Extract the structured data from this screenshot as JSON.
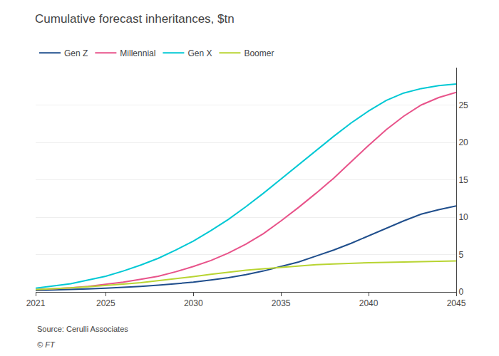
{
  "chart_data": {
    "type": "line",
    "title": "Cumulative forecast inheritances, $tn",
    "x": [
      2021,
      2022,
      2023,
      2024,
      2025,
      2026,
      2027,
      2028,
      2029,
      2030,
      2031,
      2032,
      2033,
      2034,
      2035,
      2036,
      2037,
      2038,
      2039,
      2040,
      2041,
      2042,
      2043,
      2044,
      2045
    ],
    "series": [
      {
        "name": "Gen Z",
        "color": "#1f4e8c",
        "values": [
          0.2,
          0.25,
          0.3,
          0.4,
          0.5,
          0.6,
          0.75,
          0.9,
          1.1,
          1.3,
          1.6,
          1.9,
          2.3,
          2.8,
          3.4,
          4.0,
          4.8,
          5.6,
          6.5,
          7.5,
          8.5,
          9.5,
          10.4,
          11.0,
          11.5
        ]
      },
      {
        "name": "Millennial",
        "color": "#e8538a",
        "values": [
          0.3,
          0.4,
          0.55,
          0.75,
          1.0,
          1.3,
          1.7,
          2.1,
          2.7,
          3.4,
          4.2,
          5.2,
          6.4,
          7.8,
          9.5,
          11.3,
          13.2,
          15.2,
          17.4,
          19.6,
          21.7,
          23.5,
          25.0,
          26.0,
          26.7
        ]
      },
      {
        "name": "Gen X",
        "color": "#00c8d4",
        "values": [
          0.5,
          0.8,
          1.1,
          1.6,
          2.1,
          2.8,
          3.6,
          4.5,
          5.6,
          6.8,
          8.2,
          9.7,
          11.4,
          13.2,
          15.1,
          17.0,
          18.9,
          20.8,
          22.6,
          24.2,
          25.6,
          26.6,
          27.2,
          27.6,
          27.8
        ]
      },
      {
        "name": "Boomer",
        "color": "#b8d432",
        "values": [
          0.3,
          0.4,
          0.55,
          0.7,
          0.85,
          1.05,
          1.25,
          1.5,
          1.75,
          2.05,
          2.35,
          2.65,
          2.9,
          3.1,
          3.3,
          3.5,
          3.65,
          3.75,
          3.85,
          3.9,
          3.95,
          4.0,
          4.05,
          4.1,
          4.15
        ]
      }
    ],
    "xlim": [
      2021,
      2045
    ],
    "xticks": [
      2021,
      2025,
      2030,
      2035,
      2040,
      2045
    ],
    "ylim": [
      0,
      30
    ],
    "yticks": [
      0,
      5,
      10,
      15,
      20,
      25
    ],
    "grid": "y",
    "legend": "upper left",
    "annotations": [
      "Source: Cerulli Associates",
      "© FT"
    ]
  }
}
